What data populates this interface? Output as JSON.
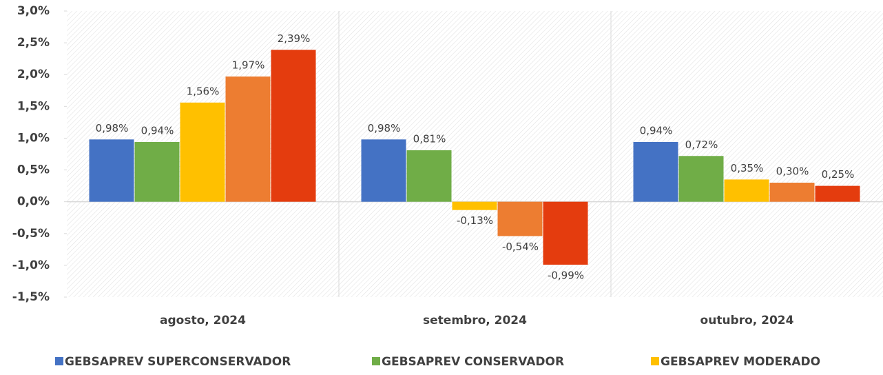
{
  "chart_data": {
    "type": "bar",
    "categories": [
      "agosto, 2024",
      "setembro, 2024",
      "outubro, 2024"
    ],
    "series": [
      {
        "name": "GEBSAPREV SUPERCONSERVADOR",
        "color": "#4472c4",
        "values": [
          0.98,
          0.98,
          0.94
        ],
        "value_labels": [
          "0,98%",
          "0,98%",
          "0,94%"
        ]
      },
      {
        "name": "GEBSAPREV CONSERVADOR",
        "color": "#70ad47",
        "values": [
          0.94,
          0.81,
          0.72
        ],
        "value_labels": [
          "0,94%",
          "0,81%",
          "0,72%"
        ]
      },
      {
        "name": "GEBSAPREV MODERADO",
        "color": "#ffc000",
        "values": [
          1.56,
          -0.13,
          0.35
        ],
        "value_labels": [
          "1,56%",
          "-0,13%",
          "0,35%"
        ]
      },
      {
        "color": "#ed7d31",
        "values": [
          1.97,
          -0.54,
          0.3
        ],
        "value_labels": [
          "1,97%",
          "-0,54%",
          "0,30%"
        ]
      },
      {
        "color": "#e43c0e",
        "values": [
          2.39,
          -0.99,
          0.25
        ],
        "value_labels": [
          "2,39%",
          "-0,99%",
          "0,25%"
        ]
      }
    ],
    "ylim": [
      -1.5,
      3.0
    ],
    "yticks": [
      {
        "value": -1.5,
        "label": "-1,5%"
      },
      {
        "value": -1.0,
        "label": "-1,0%"
      },
      {
        "value": -0.5,
        "label": "-0,5%"
      },
      {
        "value": 0.0,
        "label": "0,0%"
      },
      {
        "value": 0.5,
        "label": "0,5%"
      },
      {
        "value": 1.0,
        "label": "1,0%"
      },
      {
        "value": 1.5,
        "label": "1,5%"
      },
      {
        "value": 2.0,
        "label": "2,0%"
      },
      {
        "value": 2.5,
        "label": "2,5%"
      },
      {
        "value": 3.0,
        "label": "3,0%"
      }
    ]
  }
}
